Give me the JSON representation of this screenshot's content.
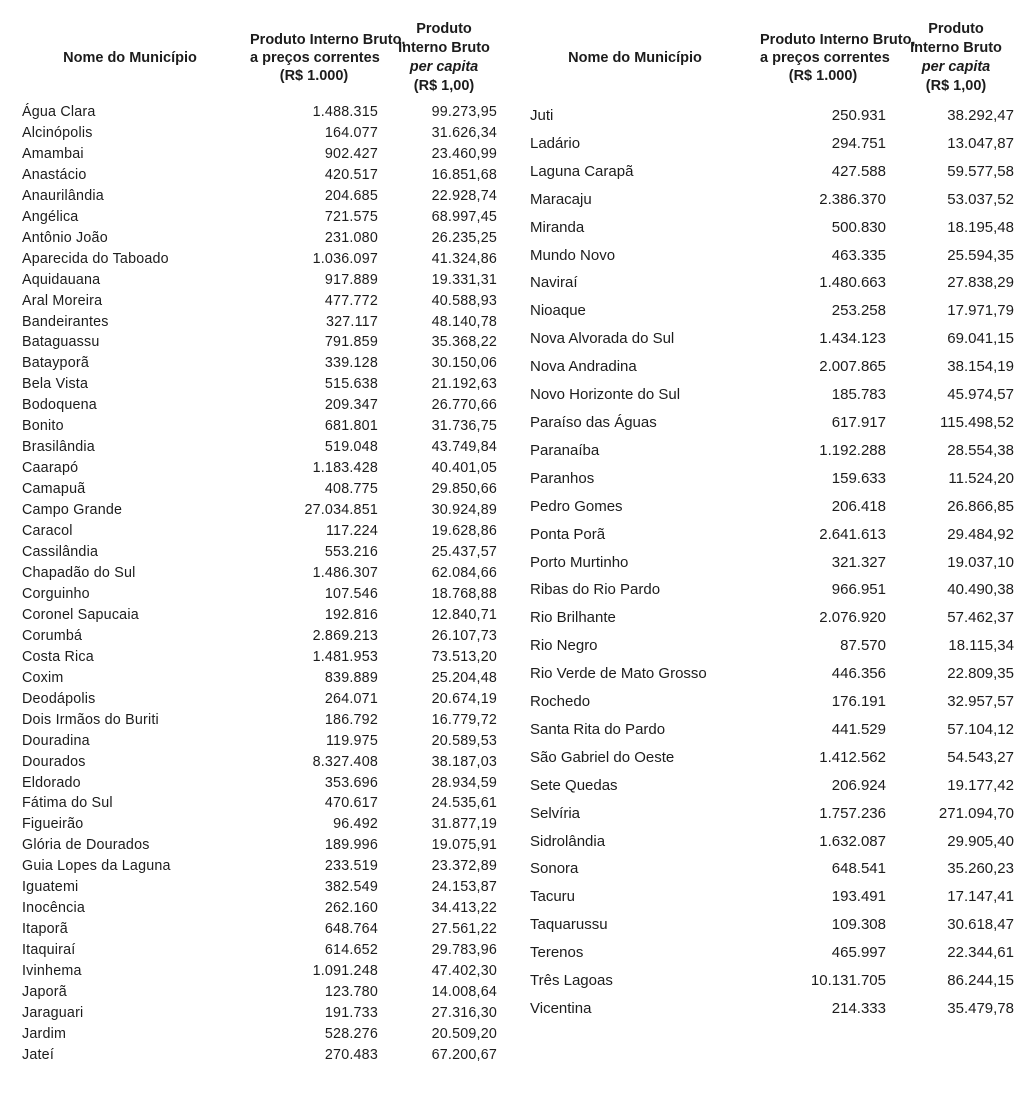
{
  "header": {
    "name": "Nome do Município",
    "pib_line1": "Produto Interno Bruto,",
    "pib_line2": "a preços correntes",
    "pib_line3": "(R$ 1.000)",
    "percapita_line1": "Produto",
    "percapita_line2": "Interno Bruto",
    "percapita_line3": "per capita",
    "percapita_line4": "(R$ 1,00)"
  },
  "left_table": {
    "rows": [
      [
        "Água Clara",
        "1.488.315",
        "99.273,95"
      ],
      [
        "Alcinópolis",
        "164.077",
        "31.626,34"
      ],
      [
        "Amambai",
        "902.427",
        "23.460,99"
      ],
      [
        "Anastácio",
        "420.517",
        "16.851,68"
      ],
      [
        "Anaurilândia",
        "204.685",
        "22.928,74"
      ],
      [
        "Angélica",
        "721.575",
        "68.997,45"
      ],
      [
        "Antônio João",
        "231.080",
        "26.235,25"
      ],
      [
        "Aparecida do Taboado",
        "1.036.097",
        "41.324,86"
      ],
      [
        "Aquidauana",
        "917.889",
        "19.331,31"
      ],
      [
        "Aral Moreira",
        "477.772",
        "40.588,93"
      ],
      [
        "Bandeirantes",
        "327.117",
        "48.140,78"
      ],
      [
        "Bataguassu",
        "791.859",
        "35.368,22"
      ],
      [
        "Batayporã",
        "339.128",
        "30.150,06"
      ],
      [
        "Bela Vista",
        "515.638",
        "21.192,63"
      ],
      [
        "Bodoquena",
        "209.347",
        "26.770,66"
      ],
      [
        "Bonito",
        "681.801",
        "31.736,75"
      ],
      [
        "Brasilândia",
        "519.048",
        "43.749,84"
      ],
      [
        "Caarapó",
        "1.183.428",
        "40.401,05"
      ],
      [
        "Camapuã",
        "408.775",
        "29.850,66"
      ],
      [
        "Campo Grande",
        "27.034.851",
        "30.924,89"
      ],
      [
        "Caracol",
        "117.224",
        "19.628,86"
      ],
      [
        "Cassilândia",
        "553.216",
        "25.437,57"
      ],
      [
        "Chapadão do Sul",
        "1.486.307",
        "62.084,66"
      ],
      [
        "Corguinho",
        "107.546",
        "18.768,88"
      ],
      [
        "Coronel Sapucaia",
        "192.816",
        "12.840,71"
      ],
      [
        "Corumbá",
        "2.869.213",
        "26.107,73"
      ],
      [
        "Costa Rica",
        "1.481.953",
        "73.513,20"
      ],
      [
        "Coxim",
        "839.889",
        "25.204,48"
      ],
      [
        "Deodápolis",
        "264.071",
        "20.674,19"
      ],
      [
        "Dois Irmãos do Buriti",
        "186.792",
        "16.779,72"
      ],
      [
        "Douradina",
        "119.975",
        "20.589,53"
      ],
      [
        "Dourados",
        "8.327.408",
        "38.187,03"
      ],
      [
        "Eldorado",
        "353.696",
        "28.934,59"
      ],
      [
        "Fátima do Sul",
        "470.617",
        "24.535,61"
      ],
      [
        "Figueirão",
        "96.492",
        "31.877,19"
      ],
      [
        "Glória de Dourados",
        "189.996",
        "19.075,91"
      ],
      [
        "Guia Lopes da Laguna",
        "233.519",
        "23.372,89"
      ],
      [
        "Iguatemi",
        "382.549",
        "24.153,87"
      ],
      [
        "Inocência",
        "262.160",
        "34.413,22"
      ],
      [
        "Itaporã",
        "648.764",
        "27.561,22"
      ],
      [
        "Itaquiraí",
        "614.652",
        "29.783,96"
      ],
      [
        "Ivinhema",
        "1.091.248",
        "47.402,30"
      ],
      [
        "Japorã",
        "123.780",
        "14.008,64"
      ],
      [
        "Jaraguari",
        "191.733",
        "27.316,30"
      ],
      [
        "Jardim",
        "528.276",
        "20.509,20"
      ],
      [
        "Jateí",
        "270.483",
        "67.200,67"
      ]
    ]
  },
  "right_table": {
    "rows": [
      [
        "Juti",
        "250.931",
        "38.292,47"
      ],
      [
        "Ladário",
        "294.751",
        "13.047,87"
      ],
      [
        "Laguna Carapã",
        "427.588",
        "59.577,58"
      ],
      [
        "Maracaju",
        "2.386.370",
        "53.037,52"
      ],
      [
        "Miranda",
        "500.830",
        "18.195,48"
      ],
      [
        "Mundo Novo",
        "463.335",
        "25.594,35"
      ],
      [
        "Naviraí",
        "1.480.663",
        "27.838,29"
      ],
      [
        "Nioaque",
        "253.258",
        "17.971,79"
      ],
      [
        "Nova Alvorada do Sul",
        "1.434.123",
        "69.041,15"
      ],
      [
        "Nova Andradina",
        "2.007.865",
        "38.154,19"
      ],
      [
        "Novo Horizonte do Sul",
        "185.783",
        "45.974,57"
      ],
      [
        "Paraíso das Águas",
        "617.917",
        "115.498,52"
      ],
      [
        "Paranaíba",
        "1.192.288",
        "28.554,38"
      ],
      [
        "Paranhos",
        "159.633",
        "11.524,20"
      ],
      [
        "Pedro Gomes",
        "206.418",
        "26.866,85"
      ],
      [
        "Ponta Porã",
        "2.641.613",
        "29.484,92"
      ],
      [
        "Porto Murtinho",
        "321.327",
        "19.037,10"
      ],
      [
        "Ribas do Rio Pardo",
        "966.951",
        "40.490,38"
      ],
      [
        "Rio Brilhante",
        "2.076.920",
        "57.462,37"
      ],
      [
        "Rio Negro",
        "87.570",
        "18.115,34"
      ],
      [
        "Rio Verde de Mato Grosso",
        "446.356",
        "22.809,35"
      ],
      [
        "Rochedo",
        "176.191",
        "32.957,57"
      ],
      [
        "Santa Rita do Pardo",
        "441.529",
        "57.104,12"
      ],
      [
        "São Gabriel do Oeste",
        "1.412.562",
        "54.543,27"
      ],
      [
        "Sete Quedas",
        "206.924",
        "19.177,42"
      ],
      [
        "Selvíria",
        "1.757.236",
        "271.094,70"
      ],
      [
        "Sidrolândia",
        "1.632.087",
        "29.905,40"
      ],
      [
        "Sonora",
        "648.541",
        "35.260,23"
      ],
      [
        "Tacuru",
        "193.491",
        "17.147,41"
      ],
      [
        "Taquarussu",
        "109.308",
        "30.618,47"
      ],
      [
        "Terenos",
        "465.997",
        "22.344,61"
      ],
      [
        "Três Lagoas",
        "10.131.705",
        "86.244,15"
      ],
      [
        "Vicentina",
        "214.333",
        "35.479,78"
      ]
    ]
  }
}
